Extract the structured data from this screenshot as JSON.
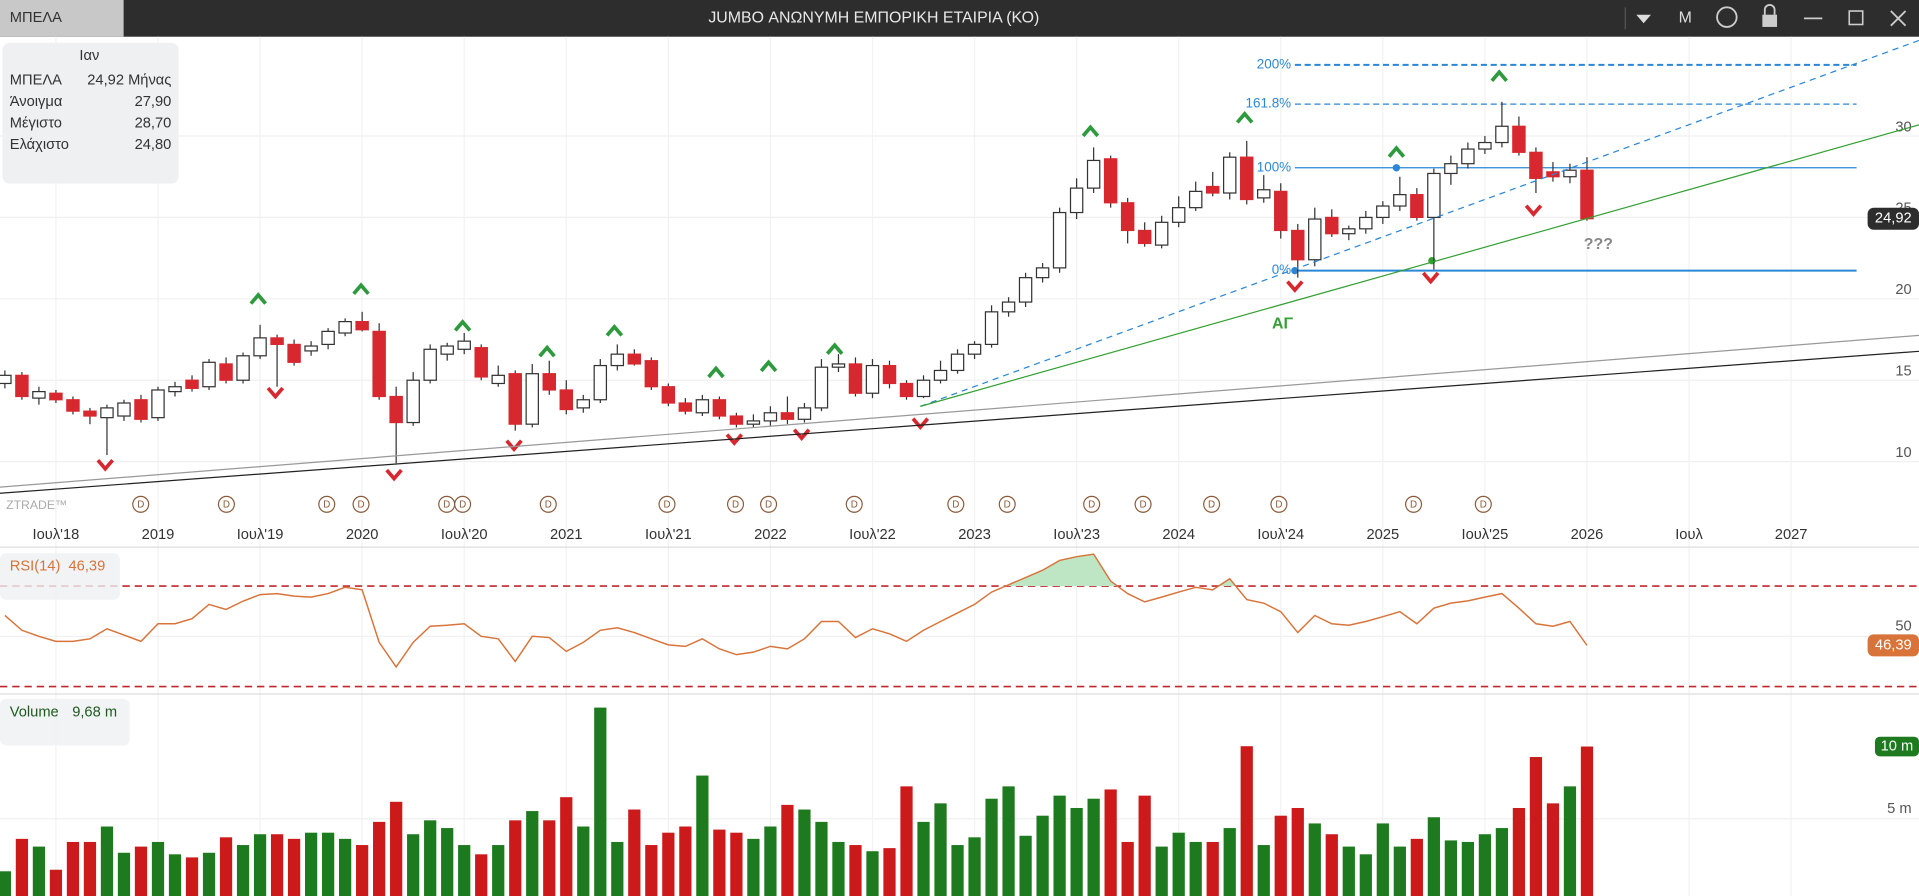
{
  "header": {
    "symbol_tab": "ΜΠΕΛΑ",
    "title": "JUMBO ΑΝΩΝΥΜΗ ΕΜΠΟΡΙΚΗ ΕΤΑΙΡΙΑ (ΚΟ)",
    "period_button": "M"
  },
  "info_panel": {
    "period": "Ιαν",
    "rows": [
      [
        "ΜΠΕΛΑ",
        "24,92 Μήνας"
      ],
      [
        "Άνοιγμα",
        "27,90"
      ],
      [
        "Μέγιστο",
        "28,70"
      ],
      [
        "Ελάχιστο",
        "24,80"
      ]
    ]
  },
  "price_chart": {
    "type": "candlestick",
    "up_color": "#ffffff",
    "down_color": "#d8282f",
    "candles": [
      [
        14.8,
        15.6,
        14.5,
        15.3
      ],
      [
        15.3,
        15.5,
        13.8,
        14.0
      ],
      [
        13.9,
        14.6,
        13.5,
        14.3
      ],
      [
        14.2,
        14.4,
        13.6,
        13.8
      ],
      [
        13.8,
        14.0,
        12.9,
        13.1
      ],
      [
        13.1,
        13.3,
        12.3,
        12.8
      ],
      [
        12.7,
        13.5,
        10.4,
        13.3
      ],
      [
        12.8,
        13.8,
        12.5,
        13.6
      ],
      [
        13.8,
        14.1,
        12.4,
        12.6
      ],
      [
        12.7,
        14.6,
        12.5,
        14.4
      ],
      [
        14.3,
        14.9,
        14.0,
        14.6
      ],
      [
        15.0,
        15.3,
        14.3,
        14.5
      ],
      [
        14.6,
        16.3,
        14.4,
        16.1
      ],
      [
        16.0,
        16.4,
        14.8,
        15.0
      ],
      [
        15.0,
        16.7,
        14.8,
        16.5
      ],
      [
        16.5,
        18.4,
        16.3,
        17.6
      ],
      [
        17.6,
        17.8,
        14.6,
        17.2
      ],
      [
        17.2,
        17.5,
        15.9,
        16.1
      ],
      [
        16.8,
        17.4,
        16.5,
        17.1
      ],
      [
        17.2,
        18.2,
        16.9,
        18.0
      ],
      [
        17.9,
        18.8,
        17.7,
        18.6
      ],
      [
        18.6,
        19.2,
        18.0,
        18.1
      ],
      [
        18.0,
        18.5,
        13.8,
        14.0
      ],
      [
        14.0,
        14.6,
        9.9,
        12.4
      ],
      [
        12.4,
        15.5,
        12.2,
        15.0
      ],
      [
        15.0,
        17.2,
        14.8,
        16.9
      ],
      [
        16.6,
        17.3,
        16.2,
        17.1
      ],
      [
        16.9,
        17.9,
        16.6,
        17.4
      ],
      [
        17.0,
        17.2,
        15.0,
        15.2
      ],
      [
        14.8,
        15.9,
        14.6,
        15.3
      ],
      [
        15.4,
        15.6,
        11.9,
        12.3
      ],
      [
        12.3,
        16.0,
        12.1,
        15.4
      ],
      [
        15.4,
        16.2,
        14.1,
        14.4
      ],
      [
        14.4,
        15.0,
        12.9,
        13.2
      ],
      [
        13.3,
        14.1,
        13.0,
        13.8
      ],
      [
        13.8,
        16.3,
        13.6,
        15.9
      ],
      [
        15.9,
        17.2,
        15.6,
        16.6
      ],
      [
        16.6,
        16.9,
        15.9,
        16.0
      ],
      [
        16.2,
        16.4,
        14.4,
        14.6
      ],
      [
        14.6,
        14.8,
        13.4,
        13.6
      ],
      [
        13.6,
        13.9,
        12.9,
        13.1
      ],
      [
        13.0,
        14.1,
        12.8,
        13.8
      ],
      [
        13.8,
        14.0,
        12.6,
        12.8
      ],
      [
        12.8,
        13.0,
        12.1,
        12.3
      ],
      [
        12.3,
        12.9,
        12.1,
        12.5
      ],
      [
        12.5,
        13.4,
        12.2,
        13.0
      ],
      [
        13.0,
        14.0,
        12.3,
        12.6
      ],
      [
        12.6,
        13.6,
        12.4,
        13.3
      ],
      [
        13.3,
        16.3,
        13.1,
        15.8
      ],
      [
        15.8,
        16.6,
        15.5,
        16.0
      ],
      [
        16.0,
        16.4,
        14.0,
        14.2
      ],
      [
        14.2,
        16.3,
        13.9,
        15.9
      ],
      [
        15.9,
        16.2,
        14.5,
        14.8
      ],
      [
        14.8,
        15.0,
        13.8,
        14.0
      ],
      [
        14.0,
        15.3,
        13.9,
        15.0
      ],
      [
        15.0,
        16.2,
        14.8,
        15.6
      ],
      [
        15.6,
        16.9,
        15.4,
        16.6
      ],
      [
        16.6,
        17.4,
        16.3,
        17.2
      ],
      [
        17.2,
        19.6,
        17.0,
        19.2
      ],
      [
        19.2,
        20.1,
        18.9,
        19.8
      ],
      [
        19.8,
        21.6,
        19.5,
        21.3
      ],
      [
        21.3,
        22.2,
        21.0,
        21.9
      ],
      [
        21.9,
        25.6,
        21.6,
        25.3
      ],
      [
        25.3,
        27.4,
        24.9,
        26.8
      ],
      [
        26.8,
        29.3,
        26.5,
        28.5
      ],
      [
        28.6,
        28.8,
        25.6,
        25.9
      ],
      [
        25.9,
        26.2,
        23.4,
        24.2
      ],
      [
        24.2,
        24.7,
        23.2,
        23.4
      ],
      [
        23.3,
        25.1,
        23.1,
        24.7
      ],
      [
        24.7,
        26.3,
        24.4,
        25.6
      ],
      [
        25.6,
        27.2,
        25.4,
        26.6
      ],
      [
        26.9,
        27.8,
        26.3,
        26.5
      ],
      [
        26.5,
        29.0,
        26.1,
        28.7
      ],
      [
        28.7,
        29.7,
        25.8,
        26.1
      ],
      [
        26.2,
        27.6,
        25.9,
        26.7
      ],
      [
        26.6,
        27.1,
        23.7,
        24.2
      ],
      [
        24.2,
        24.6,
        21.3,
        22.4
      ],
      [
        22.4,
        25.6,
        22.0,
        24.9
      ],
      [
        25.0,
        25.5,
        23.8,
        24.0
      ],
      [
        24.0,
        24.5,
        23.6,
        24.3
      ],
      [
        24.3,
        25.4,
        24.0,
        25.0
      ],
      [
        25.0,
        26.0,
        24.6,
        25.7
      ],
      [
        25.7,
        27.5,
        25.4,
        26.4
      ],
      [
        26.4,
        26.8,
        24.8,
        25.0
      ],
      [
        25.0,
        28.0,
        21.8,
        27.7
      ],
      [
        27.7,
        28.8,
        27.0,
        28.3
      ],
      [
        28.3,
        29.6,
        28.0,
        29.2
      ],
      [
        29.2,
        30.0,
        28.9,
        29.6
      ],
      [
        29.6,
        32.1,
        29.3,
        30.6
      ],
      [
        30.6,
        31.2,
        28.8,
        29.0
      ],
      [
        29.0,
        29.3,
        26.5,
        27.4
      ],
      [
        27.8,
        28.4,
        27.2,
        27.5
      ],
      [
        27.5,
        28.3,
        27.1,
        27.9
      ],
      [
        27.9,
        28.7,
        24.8,
        24.92
      ]
    ],
    "ylim": [
      6.4,
      36.1
    ],
    "yticks": [
      10,
      15,
      20,
      25,
      30
    ],
    "last": {
      "value": 24.92,
      "label": "24,92"
    },
    "x_labels": [
      "Ιουλ'18",
      "2019",
      "Ιουλ'19",
      "2020",
      "Ιουλ'20",
      "2021",
      "Ιουλ'21",
      "2022",
      "Ιουλ'22",
      "2023",
      "Ιουλ'23",
      "2024",
      "Ιουλ'24",
      "2025",
      "Ιουλ'25",
      "2026",
      "Ιουλ",
      "2027"
    ],
    "fib_levels": [
      {
        "label": "200%",
        "price": 34.37
      },
      {
        "label": "161.8%",
        "price": 31.96
      },
      {
        "label": "100%",
        "price": 28.05
      },
      {
        "label": "0%",
        "price": 21.73
      }
    ],
    "annotations": [
      "ΑΓ",
      "???"
    ],
    "watermark": "ZTRADE™",
    "dividend_marker": "D"
  },
  "rsi_panel": {
    "type": "line",
    "title": "RSI(14)",
    "value_label": "46,39",
    "color": "#d8743a",
    "ylim": [
      28,
      85
    ],
    "levels": [
      70,
      30
    ],
    "yticks": [
      50
    ],
    "values": [
      58.3,
      52.4,
      50,
      48,
      48,
      49,
      53,
      50.5,
      48,
      55,
      55,
      57,
      62.7,
      60.7,
      64,
      66.6,
      67,
      66,
      65.6,
      67,
      69.5,
      68.5,
      47.6,
      37.8,
      47.6,
      54,
      54.4,
      55,
      50,
      49,
      40,
      50,
      49.5,
      44,
      47.6,
      52.4,
      53.4,
      51.5,
      49,
      46.6,
      46,
      49,
      45,
      42.7,
      43.7,
      46,
      45,
      49,
      55.9,
      55.9,
      49.5,
      53,
      51,
      48,
      52.4,
      55.9,
      59.3,
      62.7,
      67.6,
      70.5,
      73.4,
      76.3,
      80.2,
      81.7,
      82.7,
      72,
      67,
      63.7,
      65.6,
      67.6,
      69.5,
      68.5,
      72.9,
      64.6,
      63.2,
      59.8,
      51.5,
      58.3,
      55,
      54.4,
      55.9,
      57.8,
      59.8,
      55,
      61.2,
      63.2,
      64.1,
      65.6,
      67,
      61.2,
      55,
      54,
      55.9,
      46.39
    ]
  },
  "volume_panel": {
    "type": "bar",
    "title": "Volume",
    "legend_value": "9,68 m",
    "last_label": "10 m",
    "up_color": "#1e7a1e",
    "down_color": "#cc1a1a",
    "ylim": [
      0,
      13
    ],
    "yticks": [
      {
        "value": 5,
        "label": "5 m"
      }
    ],
    "values": [
      1.6,
      3.7,
      3.2,
      1.7,
      3.5,
      3.5,
      4.5,
      2.8,
      3.2,
      3.5,
      2.7,
      2.5,
      2.8,
      3.8,
      3.3,
      4.0,
      4.0,
      3.7,
      4.1,
      4.1,
      3.7,
      3.3,
      4.8,
      6.1,
      4.0,
      4.9,
      4.4,
      3.3,
      2.7,
      3.3,
      4.9,
      5.5,
      4.9,
      6.4,
      4.5,
      12.2,
      3.5,
      5.6,
      3.3,
      4.1,
      4.5,
      7.8,
      4.3,
      4.1,
      3.7,
      4.5,
      5.9,
      5.6,
      4.8,
      3.5,
      3.3,
      2.9,
      3.1,
      7.1,
      4.8,
      6.0,
      3.3,
      3.8,
      6.3,
      7.1,
      3.9,
      5.2,
      6.5,
      5.7,
      6.3,
      6.9,
      3.5,
      6.5,
      3.2,
      4.1,
      3.5,
      3.5,
      4.4,
      9.7,
      3.3,
      5.2,
      5.7,
      4.7,
      4.0,
      3.2,
      2.7,
      4.7,
      3.2,
      3.7,
      5.1,
      3.6,
      3.5,
      4.0,
      4.4,
      5.7,
      9.0,
      6.0,
      7.1,
      9.68
    ]
  }
}
